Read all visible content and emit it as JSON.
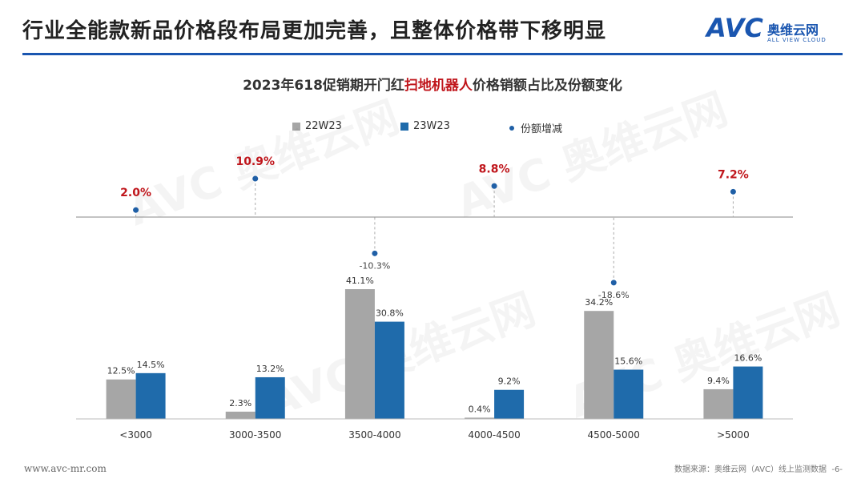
{
  "header": {
    "title": "行业全能款新品价格段布局更加完善，且整体价格带下移明显",
    "logo": {
      "abbr": "AVC",
      "name_cn": "奥维云网",
      "name_en": "ALL VIEW CLOUD"
    }
  },
  "colors": {
    "series_22": "#a6a6a6",
    "series_23": "#1f6bab",
    "growth_dot": "#1f5fa6",
    "growth_positive": "#c0161c",
    "growth_negative": "#444444",
    "brand": "#1a56b0"
  },
  "chart_data": {
    "type": "bar",
    "title_pre": "2023年618促销期开门红",
    "title_highlight": "扫地机器人",
    "title_post": "价格销额占比及份额变化",
    "categories": [
      "<3000",
      "3000-3500",
      "3500-4000",
      "4000-4500",
      "4500-5000",
      ">5000"
    ],
    "series": [
      {
        "name": "22W23",
        "values": [
          12.5,
          2.3,
          41.1,
          0.4,
          34.2,
          9.4
        ],
        "labels": [
          "12.5%",
          "2.3%",
          "41.1%",
          "0.4%",
          "34.2%",
          "9.4%"
        ]
      },
      {
        "name": "23W23",
        "values": [
          14.5,
          13.2,
          30.8,
          9.2,
          15.6,
          16.6
        ],
        "labels": [
          "14.5%",
          "13.2%",
          "30.8%",
          "9.2%",
          "15.6%",
          "16.6%"
        ]
      }
    ],
    "growth": {
      "name": "份额增减",
      "values": [
        2.0,
        10.9,
        -10.3,
        8.8,
        -18.6,
        7.2
      ],
      "labels": [
        "2.0%",
        "10.9%",
        "-10.3%",
        "8.8%",
        "-18.6%",
        "7.2%"
      ]
    },
    "ylim": [
      0,
      45
    ]
  },
  "footer": {
    "website": "www.avc-mr.com",
    "source": "数据来源：奥维云网（AVC）线上监测数据",
    "page": "-6-"
  }
}
